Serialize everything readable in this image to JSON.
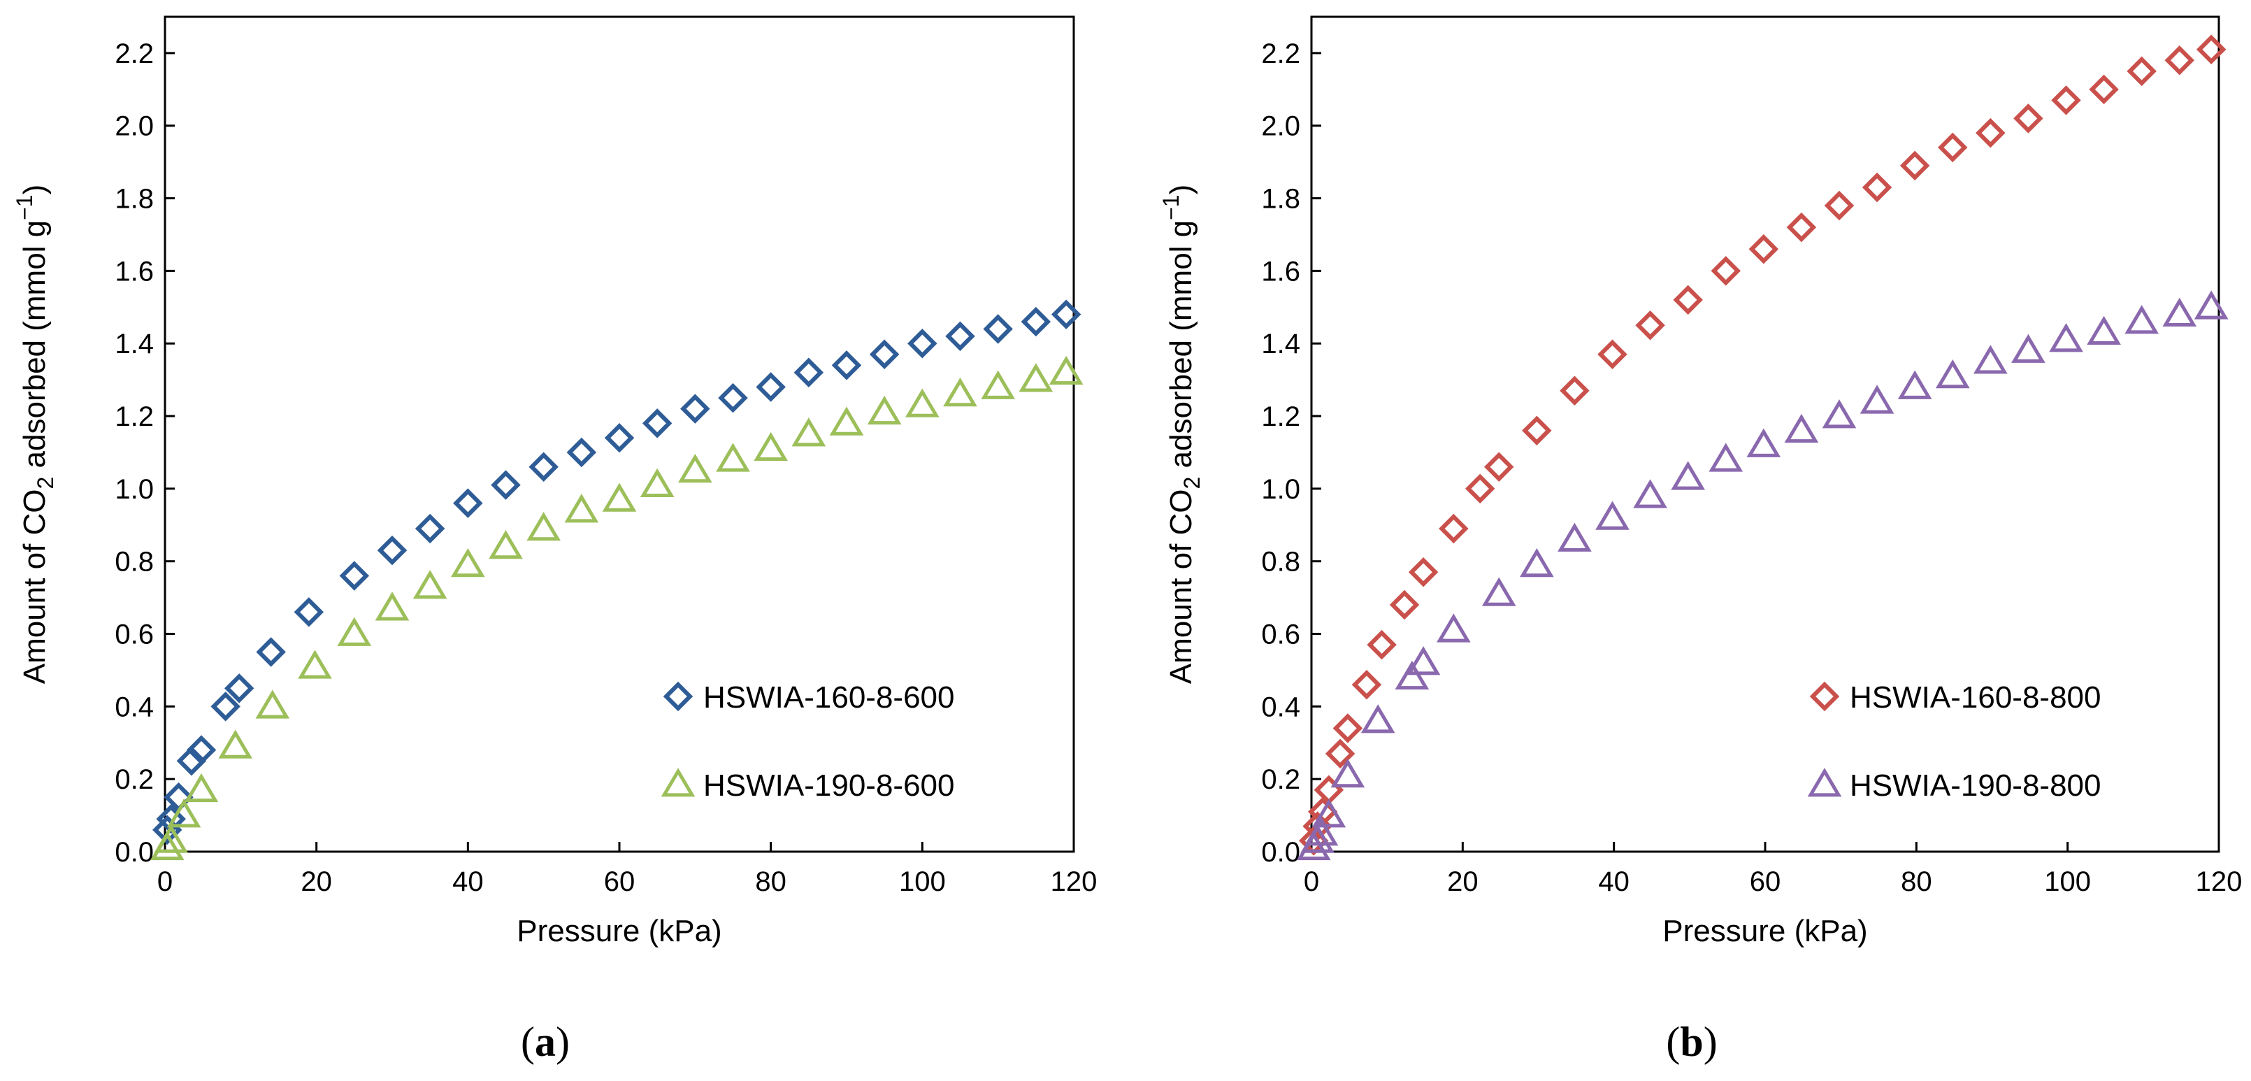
{
  "chart_data": [
    {
      "type": "scatter",
      "panel_label": "a",
      "title": "",
      "xlabel": "Pressure (kPa)",
      "ylabel": {
        "prefix": "Amount of CO",
        "subscript": "2",
        "middle": " adsorbed (mmol g",
        "superscript": "−1",
        "suffix": ")"
      },
      "xlim": [
        0,
        120
      ],
      "ylim": [
        0,
        2.3
      ],
      "xticks": [
        0,
        20,
        40,
        60,
        80,
        100,
        120
      ],
      "yticks": [
        "0.0",
        "0.2",
        "0.4",
        "0.6",
        "0.8",
        "1.0",
        "1.2",
        "1.4",
        "1.6",
        "1.8",
        "2.0",
        "2.2"
      ],
      "grid": false,
      "legend_position": "bottom-right",
      "series": [
        {
          "name": "HSWIA-160-8-600",
          "marker": "diamond",
          "color": "#2E5C96",
          "x": [
            0.3,
            0.8,
            1.8,
            3.5,
            4.8,
            8.0,
            9.8,
            14.0,
            19.0,
            25.0,
            30.0,
            35.0,
            40.0,
            45.0,
            50.0,
            55.0,
            60.0,
            65.0,
            70.0,
            75.0,
            80.0,
            85.0,
            90.0,
            95.0,
            100.0,
            105.0,
            110.0,
            115.0,
            119.0
          ],
          "y": [
            0.06,
            0.09,
            0.15,
            0.25,
            0.28,
            0.4,
            0.45,
            0.55,
            0.66,
            0.76,
            0.83,
            0.89,
            0.96,
            1.01,
            1.06,
            1.1,
            1.14,
            1.18,
            1.22,
            1.25,
            1.28,
            1.32,
            1.34,
            1.37,
            1.4,
            1.42,
            1.44,
            1.46,
            1.48
          ]
        },
        {
          "name": "HSWIA-190-8-600",
          "marker": "triangle",
          "color": "#9CBF5A",
          "x": [
            0.3,
            0.8,
            2.5,
            4.8,
            9.3,
            14.2,
            19.8,
            25.0,
            30.0,
            35.0,
            40.0,
            45.0,
            50.0,
            55.0,
            60.0,
            65.0,
            70.0,
            75.0,
            80.0,
            85.0,
            90.0,
            95.0,
            100.0,
            105.0,
            110.0,
            115.0,
            119.0
          ],
          "y": [
            0.01,
            0.03,
            0.1,
            0.17,
            0.29,
            0.4,
            0.51,
            0.6,
            0.67,
            0.73,
            0.79,
            0.84,
            0.89,
            0.94,
            0.97,
            1.01,
            1.05,
            1.08,
            1.11,
            1.15,
            1.18,
            1.21,
            1.23,
            1.26,
            1.28,
            1.3,
            1.32
          ]
        }
      ]
    },
    {
      "type": "scatter",
      "panel_label": "b",
      "title": "",
      "xlabel": "Pressure (kPa)",
      "ylabel": {
        "prefix": "Amount of CO",
        "subscript": "2",
        "middle": " adsorbed (mmol g",
        "superscript": "−1",
        "suffix": ")"
      },
      "xlim": [
        0,
        120
      ],
      "ylim": [
        0,
        2.3
      ],
      "xticks": [
        0,
        20,
        40,
        60,
        80,
        100,
        120
      ],
      "yticks": [
        "0.0",
        "0.2",
        "0.4",
        "0.6",
        "0.8",
        "1.0",
        "1.2",
        "1.4",
        "1.6",
        "1.8",
        "2.0",
        "2.2"
      ],
      "grid": false,
      "legend_position": "bottom-right",
      "series": [
        {
          "name": "HSWIA-160-8-800",
          "marker": "diamond",
          "color": "#C9504B",
          "x": [
            0.3,
            0.8,
            1.5,
            2.3,
            3.8,
            4.8,
            7.3,
            9.3,
            12.3,
            14.8,
            18.8,
            22.3,
            24.8,
            29.8,
            34.8,
            39.8,
            44.8,
            49.8,
            54.8,
            59.8,
            64.8,
            69.8,
            74.8,
            79.8,
            84.8,
            89.8,
            94.8,
            99.8,
            104.8,
            109.8,
            114.8,
            119.0
          ],
          "y": [
            0.03,
            0.07,
            0.11,
            0.17,
            0.27,
            0.34,
            0.46,
            0.57,
            0.68,
            0.77,
            0.89,
            1.0,
            1.06,
            1.16,
            1.27,
            1.37,
            1.45,
            1.52,
            1.6,
            1.66,
            1.72,
            1.78,
            1.83,
            1.89,
            1.94,
            1.98,
            2.02,
            2.07,
            2.1,
            2.15,
            2.18,
            2.21
          ]
        },
        {
          "name": "HSWIA-190-8-800",
          "marker": "triangle",
          "color": "#8A68AE",
          "x": [
            0.3,
            0.8,
            1.3,
            2.3,
            4.8,
            8.8,
            13.3,
            14.8,
            18.8,
            24.8,
            29.8,
            34.8,
            39.8,
            44.8,
            49.8,
            54.8,
            59.8,
            64.8,
            69.8,
            74.8,
            79.8,
            84.8,
            89.8,
            94.8,
            99.8,
            104.8,
            109.8,
            114.8,
            119.0
          ],
          "y": [
            0.01,
            0.03,
            0.05,
            0.1,
            0.21,
            0.36,
            0.48,
            0.52,
            0.61,
            0.71,
            0.79,
            0.86,
            0.92,
            0.98,
            1.03,
            1.08,
            1.12,
            1.16,
            1.2,
            1.24,
            1.28,
            1.31,
            1.35,
            1.38,
            1.41,
            1.43,
            1.46,
            1.48,
            1.5
          ]
        }
      ]
    }
  ]
}
